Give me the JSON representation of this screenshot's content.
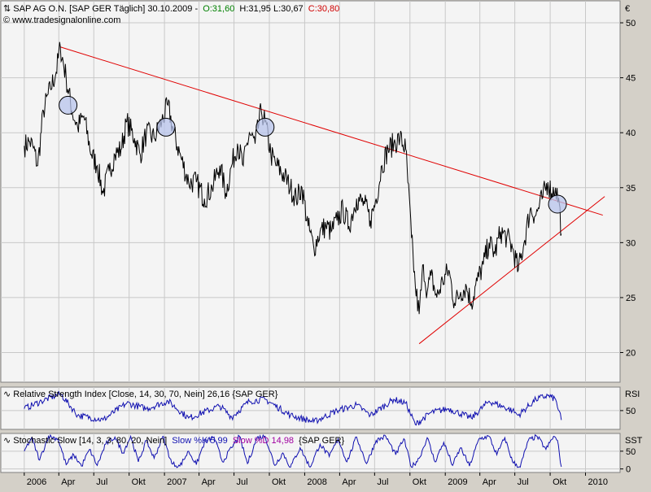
{
  "header": {
    "symbol_info": "SAP AG O.N. [SAP GER  Täglich] 30.10.2009 -",
    "open": "O:31,60",
    "high_low": "H:31,95 L:30,67",
    "close": "C:30,80",
    "source": "© www.tradesignalonline.com",
    "currency": "€"
  },
  "colors": {
    "price_line": "#000000",
    "trend_line": "#e00000",
    "indicator": "#1010b0",
    "open_text": "#008000",
    "close_text": "#d00000",
    "stoch_d": "#a000a0",
    "marker_fill": "#b8c4ec"
  },
  "chart_data": [
    {
      "type": "line",
      "title": "SAP AG O.N. [SAP GER Täglich] 30.10.2009",
      "ylabel": "€",
      "ylim": [
        17.3,
        52
      ],
      "y_ticks": [
        "50",
        "45",
        "40",
        "35",
        "30",
        "25",
        "20"
      ],
      "x_ticks": [
        "2006",
        "Apr",
        "Jul",
        "Okt",
        "2007",
        "Apr",
        "Jul",
        "Okt",
        "2008",
        "Apr",
        "Jul",
        "Okt",
        "2009",
        "Apr",
        "Jul",
        "Okt",
        "2010"
      ],
      "series": [
        {
          "values": [
            [
              "2006-01-01",
              38.8
            ],
            [
              "2006-01-15",
              39.2
            ],
            [
              "2006-01-25",
              38.6
            ],
            [
              "2006-02-05",
              37.0
            ],
            [
              "2006-02-20",
              42.0
            ],
            [
              "2006-03-10",
              44.0
            ],
            [
              "2006-03-25",
              45.5
            ],
            [
              "2006-04-05",
              47.8
            ],
            [
              "2006-04-20",
              45.0
            ],
            [
              "2006-05-05",
              42.0
            ],
            [
              "2006-05-20",
              40.5
            ],
            [
              "2006-06-05",
              41.5
            ],
            [
              "2006-06-25",
              38.0
            ],
            [
              "2006-07-10",
              37.0
            ],
            [
              "2006-07-25",
              34.5
            ],
            [
              "2006-08-10",
              36.5
            ],
            [
              "2006-08-25",
              38.0
            ],
            [
              "2006-09-10",
              38.5
            ],
            [
              "2006-09-25",
              41.0
            ],
            [
              "2006-10-15",
              39.5
            ],
            [
              "2006-10-30",
              38.0
            ],
            [
              "2006-11-15",
              40.0
            ],
            [
              "2006-12-05",
              39.5
            ],
            [
              "2006-12-25",
              41.0
            ],
            [
              "2007-01-10",
              42.5
            ],
            [
              "2007-01-25",
              40.0
            ],
            [
              "2007-02-15",
              37.5
            ],
            [
              "2007-03-05",
              35.5
            ],
            [
              "2007-03-25",
              35.5
            ],
            [
              "2007-04-15",
              34.0
            ],
            [
              "2007-05-05",
              35.0
            ],
            [
              "2007-05-25",
              37.0
            ],
            [
              "2007-06-10",
              34.5
            ],
            [
              "2007-06-25",
              37.0
            ],
            [
              "2007-07-10",
              39.0
            ],
            [
              "2007-07-25",
              37.0
            ],
            [
              "2007-08-10",
              40.0
            ],
            [
              "2007-08-25",
              39.0
            ],
            [
              "2007-09-10",
              42.0
            ],
            [
              "2007-09-20",
              41.0
            ],
            [
              "2007-10-05",
              38.0
            ],
            [
              "2007-10-20",
              37.0
            ],
            [
              "2007-11-10",
              36.0
            ],
            [
              "2007-11-25",
              35.0
            ],
            [
              "2007-12-10",
              34.0
            ],
            [
              "2007-12-25",
              35.0
            ],
            [
              "2008-01-10",
              31.5
            ],
            [
              "2008-01-25",
              29.5
            ],
            [
              "2008-02-10",
              31.0
            ],
            [
              "2008-02-25",
              31.5
            ],
            [
              "2008-03-10",
              31.0
            ],
            [
              "2008-03-25",
              32.0
            ],
            [
              "2008-04-10",
              33.0
            ],
            [
              "2008-04-25",
              31.5
            ],
            [
              "2008-05-15",
              34.0
            ],
            [
              "2008-06-05",
              33.5
            ],
            [
              "2008-06-20",
              32.0
            ],
            [
              "2008-07-05",
              34.0
            ],
            [
              "2008-07-20",
              37.0
            ],
            [
              "2008-08-05",
              38.5
            ],
            [
              "2008-08-20",
              39.0
            ],
            [
              "2008-09-05",
              39.5
            ],
            [
              "2008-09-20",
              38.5
            ],
            [
              "2008-10-05",
              30.5
            ],
            [
              "2008-10-15",
              26.0
            ],
            [
              "2008-10-25",
              23.5
            ],
            [
              "2008-11-05",
              28.0
            ],
            [
              "2008-11-15",
              25.5
            ],
            [
              "2008-11-25",
              27.0
            ],
            [
              "2008-12-10",
              25.0
            ],
            [
              "2008-12-25",
              26.5
            ],
            [
              "2009-01-10",
              27.5
            ],
            [
              "2009-01-25",
              24.5
            ],
            [
              "2009-02-10",
              25.5
            ],
            [
              "2009-02-25",
              26.0
            ],
            [
              "2009-03-10",
              24.5
            ],
            [
              "2009-03-25",
              26.5
            ],
            [
              "2009-04-10",
              28.0
            ],
            [
              "2009-04-25",
              30.0
            ],
            [
              "2009-05-10",
              29.0
            ],
            [
              "2009-05-25",
              31.0
            ],
            [
              "2009-06-10",
              30.5
            ],
            [
              "2009-06-25",
              29.5
            ],
            [
              "2009-07-10",
              27.5
            ],
            [
              "2009-07-25",
              30.0
            ],
            [
              "2009-08-10",
              33.0
            ],
            [
              "2009-08-25",
              32.5
            ],
            [
              "2009-09-10",
              34.0
            ],
            [
              "2009-09-25",
              35.5
            ],
            [
              "2009-10-05",
              34.5
            ],
            [
              "2009-10-15",
              35.0
            ],
            [
              "2009-10-25",
              33.5
            ],
            [
              "2009-10-30",
              30.8
            ]
          ]
        }
      ],
      "trendlines": [
        {
          "from": [
            "2006-04-05",
            47.8
          ],
          "to": [
            "2010-02-15",
            32.5
          ]
        },
        {
          "from": [
            "2008-10-25",
            20.8
          ],
          "to": [
            "2010-02-20",
            34.2
          ]
        }
      ],
      "markers": [
        [
          "2006-04-25",
          42.5
        ],
        [
          "2007-01-05",
          40.5
        ],
        [
          "2007-09-20",
          40.5
        ],
        [
          "2009-10-20",
          33.5
        ]
      ],
      "grid": true
    },
    {
      "type": "line",
      "title": "Relative Strength Index [Close, 14, 30, 70, Nein] 26,16 {SAP GER}",
      "ylabel": "RSI",
      "ylim": [
        30,
        75
      ],
      "y_ticks": [
        "50"
      ],
      "series": [
        {
          "values": [
            [
              "2006-01-01",
              52
            ],
            [
              "2006-02-15",
              60
            ],
            [
              "2006-04-05",
              68
            ],
            [
              "2006-05-20",
              45
            ],
            [
              "2006-07-25",
              40
            ],
            [
              "2006-09-25",
              58
            ],
            [
              "2006-11-15",
              52
            ],
            [
              "2007-01-10",
              60
            ],
            [
              "2007-03-05",
              42
            ],
            [
              "2007-05-25",
              55
            ],
            [
              "2007-06-25",
              43
            ],
            [
              "2007-08-10",
              60
            ],
            [
              "2007-09-20",
              62
            ],
            [
              "2007-11-25",
              45
            ],
            [
              "2008-01-25",
              38
            ],
            [
              "2008-03-25",
              50
            ],
            [
              "2008-05-15",
              56
            ],
            [
              "2008-06-20",
              45
            ],
            [
              "2008-08-20",
              62
            ],
            [
              "2008-09-20",
              58
            ],
            [
              "2008-10-15",
              35
            ],
            [
              "2008-11-25",
              48
            ],
            [
              "2009-01-10",
              52
            ],
            [
              "2009-03-10",
              42
            ],
            [
              "2009-04-25",
              60
            ],
            [
              "2009-06-25",
              50
            ],
            [
              "2009-07-10",
              45
            ],
            [
              "2009-08-25",
              62
            ],
            [
              "2009-09-25",
              66
            ],
            [
              "2009-10-15",
              62
            ],
            [
              "2009-10-30",
              40
            ]
          ]
        }
      ],
      "grid": true
    },
    {
      "type": "line",
      "title": "Stochastic Slow [14, 3, 3, 80, 20, Nein]",
      "slow_k": "Slow %K 5,99",
      "slow_d": "Slow %D 14,98",
      "source": "{SAP GER}",
      "ylabel": "SST",
      "ylim": [
        -10,
        100
      ],
      "y_ticks": [
        "50",
        "0"
      ],
      "series": [
        {
          "name": "Slow %K 5,99",
          "values": [
            [
              "2006-01-01",
              50
            ],
            [
              "2006-01-20",
              88
            ],
            [
              "2006-02-10",
              25
            ],
            [
              "2006-03-05",
              92
            ],
            [
              "2006-03-30",
              85
            ],
            [
              "2006-04-20",
              12
            ],
            [
              "2006-05-10",
              40
            ],
            [
              "2006-05-30",
              8
            ],
            [
              "2006-06-20",
              55
            ],
            [
              "2006-07-10",
              10
            ],
            [
              "2006-08-01",
              70
            ],
            [
              "2006-08-25",
              90
            ],
            [
              "2006-09-15",
              45
            ],
            [
              "2006-10-05",
              92
            ],
            [
              "2006-10-25",
              20
            ],
            [
              "2006-11-15",
              80
            ],
            [
              "2006-12-05",
              30
            ],
            [
              "2006-12-28",
              92
            ],
            [
              "2007-01-20",
              15
            ],
            [
              "2007-02-10",
              8
            ],
            [
              "2007-03-05",
              50
            ],
            [
              "2007-03-25",
              12
            ],
            [
              "2007-04-15",
              75
            ],
            [
              "2007-05-10",
              90
            ],
            [
              "2007-06-01",
              20
            ],
            [
              "2007-06-25",
              60
            ],
            [
              "2007-07-15",
              92
            ],
            [
              "2007-08-05",
              15
            ],
            [
              "2007-08-30",
              88
            ],
            [
              "2007-09-20",
              92
            ],
            [
              "2007-10-15",
              10
            ],
            [
              "2007-11-05",
              45
            ],
            [
              "2007-11-25",
              5
            ],
            [
              "2007-12-20",
              60
            ],
            [
              "2008-01-15",
              5
            ],
            [
              "2008-02-10",
              70
            ],
            [
              "2008-03-05",
              35
            ],
            [
              "2008-03-28",
              85
            ],
            [
              "2008-04-20",
              20
            ],
            [
              "2008-05-15",
              90
            ],
            [
              "2008-06-10",
              15
            ],
            [
              "2008-07-05",
              80
            ],
            [
              "2008-07-30",
              92
            ],
            [
              "2008-08-25",
              40
            ],
            [
              "2008-09-15",
              85
            ],
            [
              "2008-10-05",
              5
            ],
            [
              "2008-10-25",
              30
            ],
            [
              "2008-11-15",
              88
            ],
            [
              "2008-12-05",
              20
            ],
            [
              "2008-12-28",
              75
            ],
            [
              "2009-01-20",
              10
            ],
            [
              "2009-02-10",
              60
            ],
            [
              "2009-03-05",
              8
            ],
            [
              "2009-03-30",
              85
            ],
            [
              "2009-04-25",
              92
            ],
            [
              "2009-05-15",
              40
            ],
            [
              "2009-06-05",
              88
            ],
            [
              "2009-06-25",
              20
            ],
            [
              "2009-07-15",
              5
            ],
            [
              "2009-08-05",
              80
            ],
            [
              "2009-08-28",
              92
            ],
            [
              "2009-09-20",
              55
            ],
            [
              "2009-10-10",
              92
            ],
            [
              "2009-10-20",
              80
            ],
            [
              "2009-10-30",
              6
            ]
          ]
        }
      ],
      "grid": true
    }
  ],
  "time_axis": {
    "start": "2005-11-01",
    "end": "2010-04-01"
  }
}
